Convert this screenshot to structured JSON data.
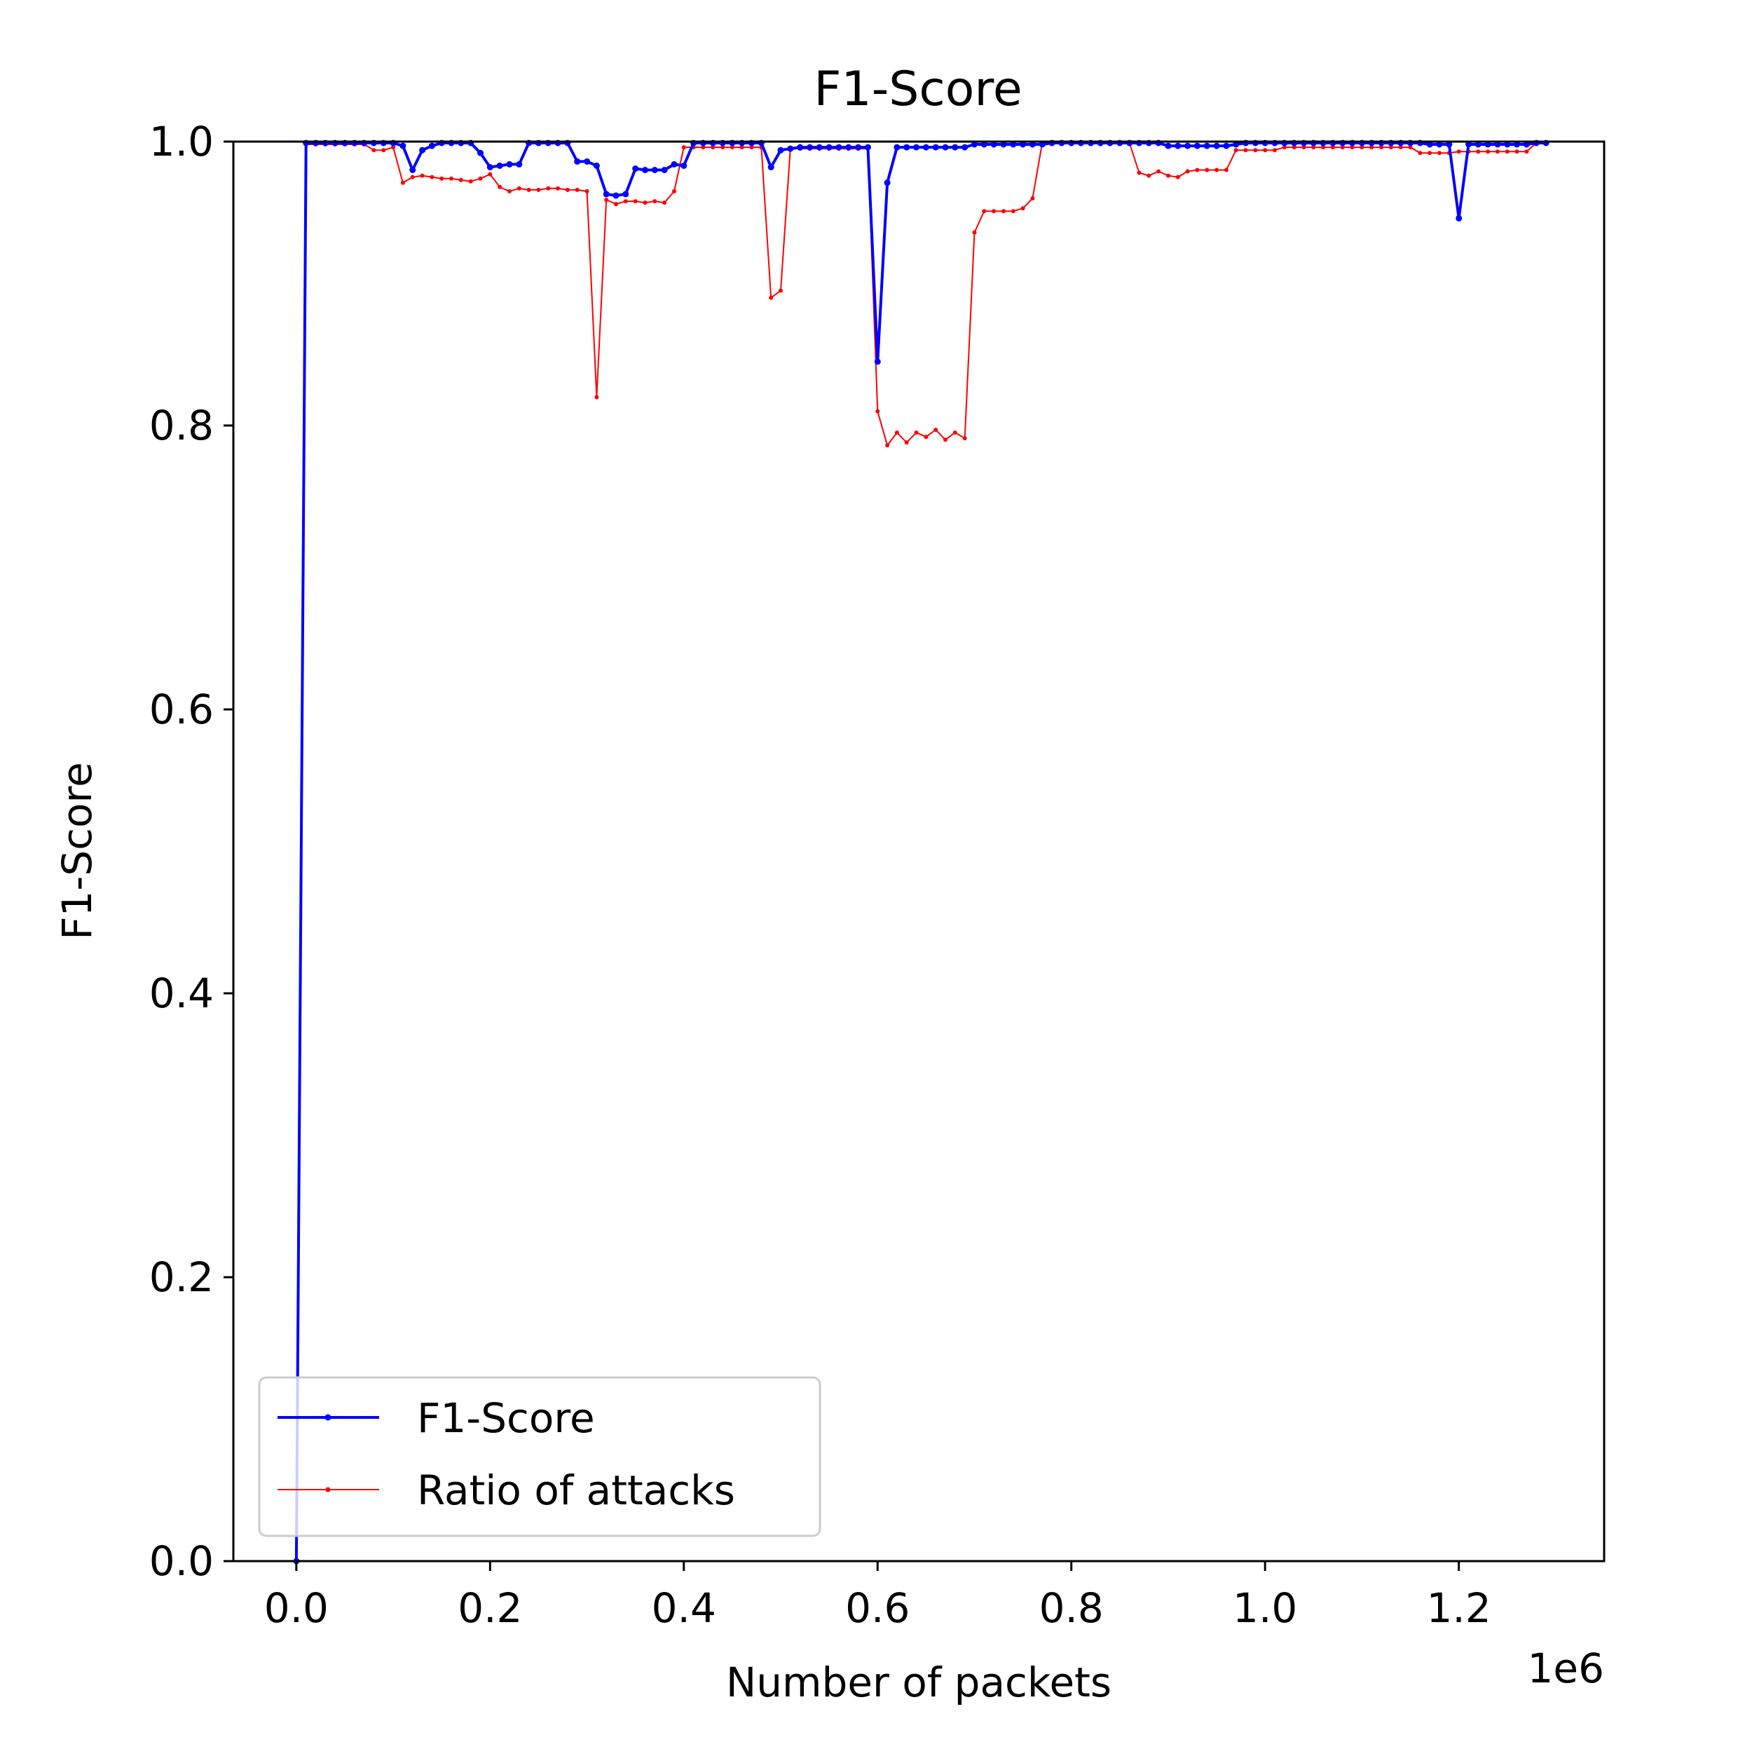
{
  "chart_data": {
    "type": "line",
    "title": "F1-Score",
    "xlabel": "Number of packets",
    "ylabel": "F1-Score",
    "x_offset_label": "1e6",
    "xlim": [
      -0.065,
      1.35
    ],
    "ylim": [
      0.0,
      1.0
    ],
    "x_ticks": [
      0.0,
      0.2,
      0.4,
      0.6,
      0.8,
      1.0,
      1.2
    ],
    "x_tick_labels": [
      "0.0",
      "0.2",
      "0.4",
      "0.6",
      "0.8",
      "1.0",
      "1.2"
    ],
    "y_ticks": [
      0.0,
      0.2,
      0.4,
      0.6,
      0.8,
      1.0
    ],
    "y_tick_labels": [
      "0.0",
      "0.2",
      "0.4",
      "0.6",
      "0.8",
      "1.0"
    ],
    "grid": false,
    "legend_position": "lower-left",
    "series": [
      {
        "name": "F1-Score",
        "color": "#0000ff",
        "x": [
          0.0,
          0.01,
          0.02,
          0.03,
          0.04,
          0.05,
          0.06,
          0.07,
          0.08,
          0.09,
          0.1,
          0.11,
          0.12,
          0.13,
          0.14,
          0.15,
          0.16,
          0.17,
          0.18,
          0.19,
          0.2,
          0.21,
          0.22,
          0.23,
          0.24,
          0.25,
          0.26,
          0.27,
          0.28,
          0.29,
          0.3,
          0.31,
          0.32,
          0.33,
          0.34,
          0.35,
          0.36,
          0.37,
          0.38,
          0.39,
          0.4,
          0.41,
          0.42,
          0.43,
          0.44,
          0.45,
          0.46,
          0.47,
          0.48,
          0.49,
          0.5,
          0.51,
          0.52,
          0.53,
          0.54,
          0.55,
          0.56,
          0.57,
          0.58,
          0.59,
          0.6,
          0.61,
          0.62,
          0.63,
          0.64,
          0.65,
          0.66,
          0.67,
          0.68,
          0.69,
          0.7,
          0.71,
          0.72,
          0.73,
          0.74,
          0.75,
          0.76,
          0.77,
          0.78,
          0.79,
          0.8,
          0.81,
          0.82,
          0.83,
          0.84,
          0.85,
          0.86,
          0.87,
          0.88,
          0.89,
          0.9,
          0.91,
          0.92,
          0.93,
          0.94,
          0.95,
          0.96,
          0.97,
          0.98,
          0.99,
          1.0,
          1.01,
          1.02,
          1.03,
          1.04,
          1.05,
          1.06,
          1.07,
          1.08,
          1.09,
          1.1,
          1.11,
          1.12,
          1.13,
          1.14,
          1.15,
          1.16,
          1.17,
          1.18,
          1.19,
          1.2,
          1.21,
          1.22,
          1.23,
          1.24,
          1.25,
          1.26,
          1.27,
          1.28,
          1.29
        ],
        "values": [
          0.0,
          0.999,
          0.999,
          0.999,
          0.999,
          0.999,
          0.999,
          0.999,
          0.999,
          0.999,
          0.999,
          0.997,
          0.98,
          0.994,
          0.997,
          0.999,
          0.999,
          0.999,
          0.999,
          0.992,
          0.982,
          0.983,
          0.984,
          0.984,
          0.999,
          0.999,
          0.999,
          0.999,
          0.999,
          0.986,
          0.986,
          0.983,
          0.963,
          0.962,
          0.963,
          0.981,
          0.98,
          0.98,
          0.98,
          0.984,
          0.983,
          0.999,
          0.999,
          0.999,
          0.999,
          0.999,
          0.999,
          0.999,
          0.999,
          0.982,
          0.994,
          0.995,
          0.996,
          0.996,
          0.996,
          0.996,
          0.996,
          0.996,
          0.996,
          0.996,
          0.845,
          0.971,
          0.996,
          0.996,
          0.996,
          0.996,
          0.996,
          0.996,
          0.996,
          0.996,
          0.998,
          0.998,
          0.998,
          0.998,
          0.998,
          0.998,
          0.998,
          0.998,
          0.999,
          0.999,
          0.999,
          0.999,
          0.999,
          0.999,
          0.999,
          0.999,
          0.999,
          0.999,
          0.999,
          0.999,
          0.997,
          0.997,
          0.997,
          0.997,
          0.997,
          0.997,
          0.997,
          0.998,
          0.999,
          0.999,
          0.999,
          0.999,
          0.999,
          0.999,
          0.999,
          0.999,
          0.999,
          0.999,
          0.999,
          0.999,
          0.999,
          0.999,
          0.999,
          0.999,
          0.999,
          0.999,
          0.999,
          0.998,
          0.998,
          0.998,
          0.946,
          0.998,
          0.998,
          0.998,
          0.998,
          0.998,
          0.998,
          0.998,
          0.999,
          0.999
        ]
      },
      {
        "name": "Ratio of attacks",
        "color": "#ff0000",
        "x": [
          0.0,
          0.01,
          0.02,
          0.03,
          0.04,
          0.05,
          0.06,
          0.07,
          0.08,
          0.09,
          0.1,
          0.11,
          0.12,
          0.13,
          0.14,
          0.15,
          0.16,
          0.17,
          0.18,
          0.19,
          0.2,
          0.21,
          0.22,
          0.23,
          0.24,
          0.25,
          0.26,
          0.27,
          0.28,
          0.29,
          0.3,
          0.31,
          0.32,
          0.33,
          0.34,
          0.35,
          0.36,
          0.37,
          0.38,
          0.39,
          0.4,
          0.41,
          0.42,
          0.43,
          0.44,
          0.45,
          0.46,
          0.47,
          0.48,
          0.49,
          0.5,
          0.51,
          0.52,
          0.53,
          0.54,
          0.55,
          0.56,
          0.57,
          0.58,
          0.59,
          0.6,
          0.61,
          0.62,
          0.63,
          0.64,
          0.65,
          0.66,
          0.67,
          0.68,
          0.69,
          0.7,
          0.71,
          0.72,
          0.73,
          0.74,
          0.75,
          0.76,
          0.77,
          0.78,
          0.79,
          0.8,
          0.81,
          0.82,
          0.83,
          0.84,
          0.85,
          0.86,
          0.87,
          0.88,
          0.89,
          0.9,
          0.91,
          0.92,
          0.93,
          0.94,
          0.95,
          0.96,
          0.97,
          0.98,
          0.99,
          1.0,
          1.01,
          1.02,
          1.03,
          1.04,
          1.05,
          1.06,
          1.07,
          1.08,
          1.09,
          1.1,
          1.11,
          1.12,
          1.13,
          1.14,
          1.15,
          1.16,
          1.17,
          1.18,
          1.19,
          1.2,
          1.21,
          1.22,
          1.23,
          1.24,
          1.25,
          1.26,
          1.27,
          1.28,
          1.29
        ],
        "values": [
          0.0,
          0.998,
          0.998,
          0.998,
          0.998,
          0.998,
          0.998,
          0.998,
          0.994,
          0.994,
          0.996,
          0.971,
          0.975,
          0.976,
          0.975,
          0.974,
          0.974,
          0.973,
          0.972,
          0.974,
          0.977,
          0.968,
          0.965,
          0.967,
          0.966,
          0.966,
          0.967,
          0.967,
          0.966,
          0.966,
          0.965,
          0.82,
          0.959,
          0.956,
          0.958,
          0.958,
          0.957,
          0.958,
          0.957,
          0.965,
          0.996,
          0.996,
          0.996,
          0.996,
          0.996,
          0.996,
          0.996,
          0.996,
          0.996,
          0.89,
          0.895,
          0.995,
          0.995,
          0.995,
          0.995,
          0.995,
          0.995,
          0.995,
          0.995,
          0.995,
          0.81,
          0.786,
          0.795,
          0.788,
          0.795,
          0.792,
          0.797,
          0.79,
          0.795,
          0.791,
          0.936,
          0.951,
          0.951,
          0.951,
          0.951,
          0.953,
          0.96,
          0.999,
          0.999,
          0.999,
          0.999,
          0.999,
          0.999,
          0.999,
          0.999,
          0.999,
          0.999,
          0.978,
          0.976,
          0.979,
          0.976,
          0.975,
          0.979,
          0.98,
          0.98,
          0.98,
          0.98,
          0.994,
          0.994,
          0.994,
          0.994,
          0.994,
          0.996,
          0.996,
          0.996,
          0.996,
          0.996,
          0.996,
          0.996,
          0.996,
          0.996,
          0.996,
          0.996,
          0.996,
          0.996,
          0.996,
          0.992,
          0.992,
          0.992,
          0.992,
          0.993,
          0.993,
          0.993,
          0.993,
          0.993,
          0.993,
          0.993,
          0.993,
          0.999,
          0.999
        ]
      }
    ]
  }
}
